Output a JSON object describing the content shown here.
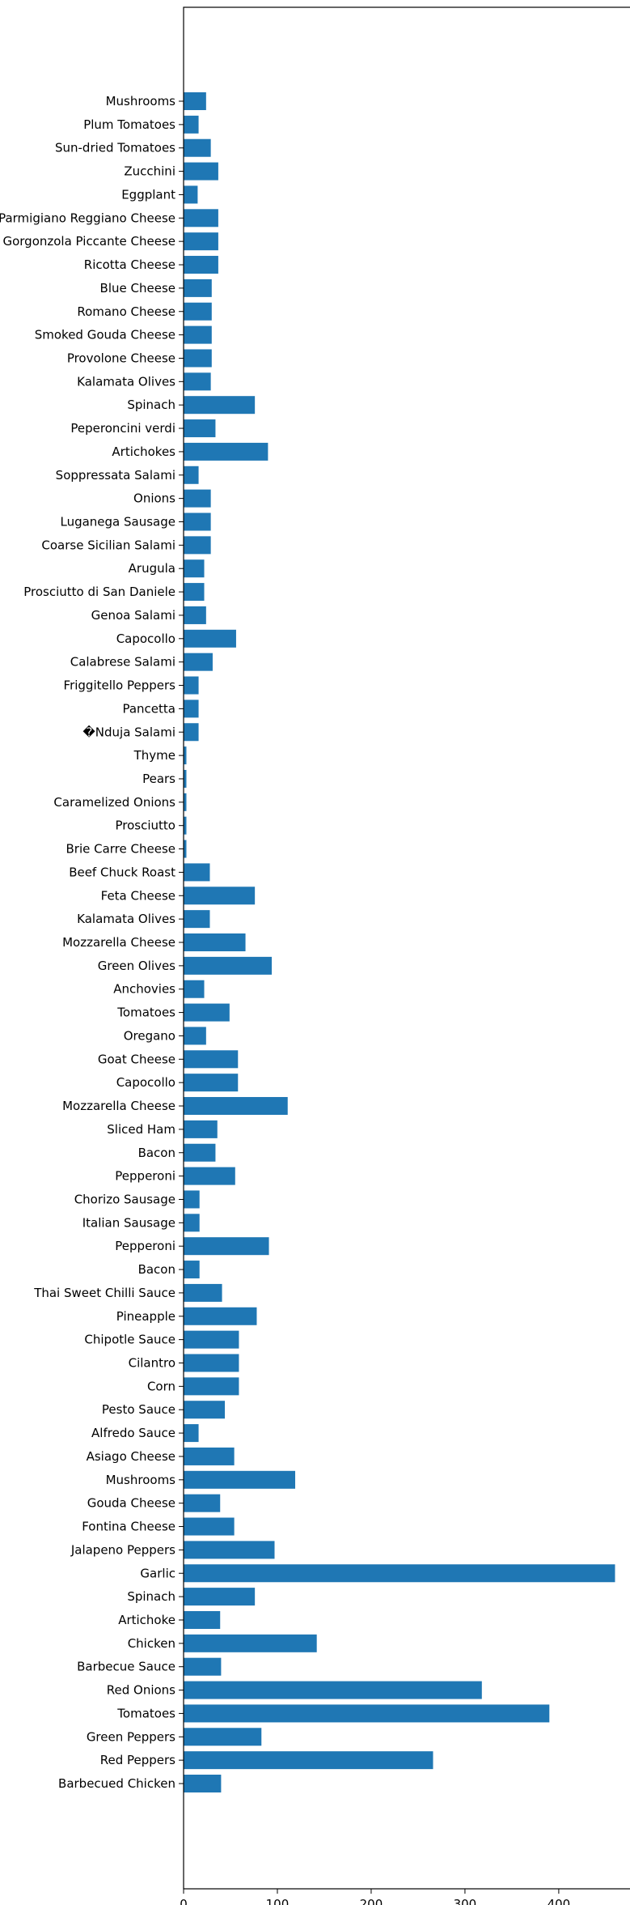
{
  "chart_data": {
    "type": "bar",
    "orientation": "horizontal",
    "color": "#1f77b4",
    "title": "",
    "xlabel": "",
    "ylabel": "",
    "xlim": [
      0,
      482
    ],
    "xticks": [
      0,
      100,
      200,
      300,
      400
    ],
    "grid": false,
    "categories": [
      "Mushrooms",
      "Plum Tomatoes",
      "Sun-dried Tomatoes",
      "Zucchini",
      "Eggplant",
      "Parmigiano Reggiano Cheese",
      "Gorgonzola Piccante Cheese",
      "Ricotta Cheese",
      "Blue Cheese",
      "Romano Cheese",
      "Smoked Gouda Cheese",
      "Provolone Cheese",
      "Kalamata Olives",
      "Spinach",
      "Peperoncini verdi",
      "Artichokes",
      "Soppressata Salami",
      "Onions",
      "Luganega Sausage",
      "Coarse Sicilian Salami",
      "Arugula",
      "Prosciutto di San Daniele",
      "Genoa Salami",
      "Capocollo",
      "Calabrese Salami",
      "Friggitello Peppers",
      "Pancetta",
      "�Nduja Salami",
      "Thyme",
      "Pears",
      "Caramelized Onions",
      "Prosciutto",
      "Brie Carre Cheese",
      "Beef Chuck Roast",
      "Feta Cheese",
      "Kalamata Olives",
      "Mozzarella Cheese",
      "Green Olives",
      "Anchovies",
      "Tomatoes",
      "Oregano",
      "Goat Cheese",
      "Capocollo",
      "Mozzarella Cheese",
      "Sliced Ham",
      "Bacon",
      "Pepperoni",
      "Chorizo Sausage",
      "Italian Sausage",
      "Pepperoni",
      "Bacon",
      "Thai Sweet Chilli Sauce",
      "Pineapple",
      "Chipotle Sauce",
      "Cilantro",
      "Corn",
      "Pesto Sauce",
      "Alfredo Sauce",
      "Asiago Cheese",
      "Mushrooms",
      "Gouda Cheese",
      "Fontina Cheese",
      "Jalapeno Peppers",
      "Garlic",
      "Spinach",
      "Artichoke",
      "Chicken",
      "Barbecue Sauce",
      "Red Onions",
      "Tomatoes",
      "Green Peppers",
      "Red Peppers",
      "Barbecued Chicken"
    ],
    "values": [
      24,
      16,
      29,
      37,
      15,
      37,
      37,
      37,
      30,
      30,
      30,
      30,
      29,
      76,
      34,
      90,
      16,
      29,
      29,
      29,
      22,
      22,
      24,
      56,
      31,
      16,
      16,
      16,
      3,
      3,
      3,
      3,
      3,
      28,
      76,
      28,
      66,
      94,
      22,
      49,
      24,
      58,
      58,
      111,
      36,
      34,
      55,
      17,
      17,
      91,
      17,
      41,
      78,
      59,
      59,
      59,
      44,
      16,
      54,
      119,
      39,
      54,
      97,
      460,
      76,
      39,
      142,
      40,
      318,
      390,
      83,
      266,
      40
    ]
  }
}
